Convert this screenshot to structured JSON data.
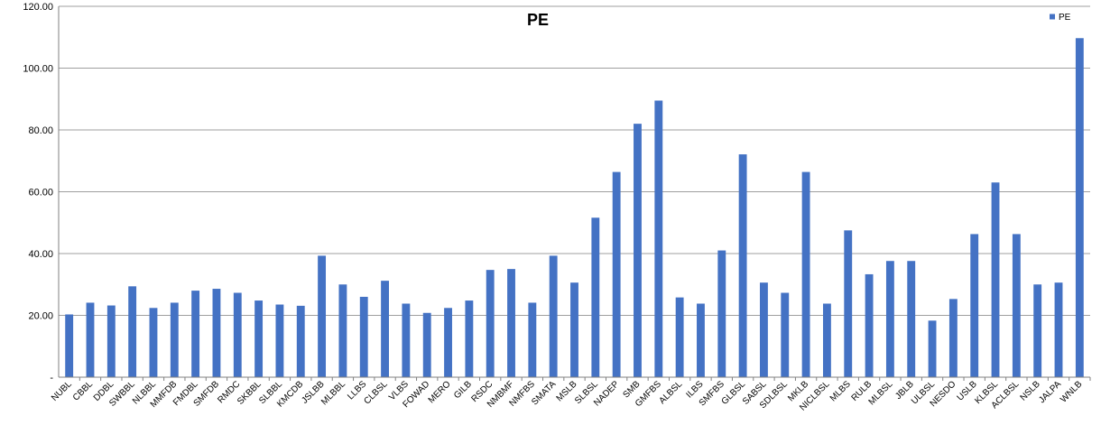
{
  "chart_data": {
    "type": "bar",
    "title": "PE",
    "xlabel": "",
    "ylabel": "",
    "ylim": [
      0,
      120
    ],
    "yticks": [
      0,
      20,
      40,
      60,
      80,
      100,
      120
    ],
    "ytick_labels": [
      "-",
      "20.00",
      "40.00",
      "60.00",
      "80.00",
      "100.00",
      "120.00"
    ],
    "grid": true,
    "legend": {
      "position": "top-right",
      "entries": [
        "PE"
      ]
    },
    "colors": {
      "bar": "#4472C4",
      "grid": "#9f9f9f",
      "axis": "#808080"
    },
    "categories": [
      "NUBL",
      "CBBL",
      "DDBL",
      "SWBBL",
      "NLBBL",
      "MMFDB",
      "FMDBL",
      "SMFDB",
      "RMDC",
      "SKBBL",
      "SLBBL",
      "KMCDB",
      "JSLBB",
      "MLBBL",
      "LLBS",
      "CLBSL",
      "VLBS",
      "FOWAD",
      "MERO",
      "GILB",
      "RSDC",
      "NMBMF",
      "NMFBS",
      "SMATA",
      "MSLB",
      "SLBSL",
      "NADEP",
      "SMB",
      "GMFBS",
      "ALBSL",
      "ILBS",
      "SMFBS",
      "GLBSL",
      "SABSL",
      "SDLBSL",
      "MKLB",
      "NICLBSL",
      "MLBS",
      "RULB",
      "MLBSL",
      "JBLB",
      "ULBSL",
      "NESDO",
      "USLB",
      "KLBSL",
      "ACLBSL",
      "NSLB",
      "JALPA",
      "WNLB"
    ],
    "series": [
      {
        "name": "PE",
        "values": [
          20.3,
          24.1,
          23.2,
          29.4,
          22.4,
          24.1,
          28.0,
          28.6,
          27.3,
          24.8,
          23.5,
          23.1,
          39.3,
          30.0,
          26.0,
          31.2,
          23.8,
          20.8,
          22.4,
          24.8,
          34.7,
          35.0,
          24.1,
          39.3,
          30.6,
          51.6,
          66.4,
          82.0,
          89.5,
          25.8,
          23.8,
          41.0,
          72.1,
          30.6,
          27.3,
          66.4,
          23.8,
          47.5,
          33.3,
          37.6,
          37.6,
          18.3,
          25.3,
          46.3,
          63.0,
          46.3,
          30.0,
          30.6,
          109.7
        ]
      }
    ]
  }
}
